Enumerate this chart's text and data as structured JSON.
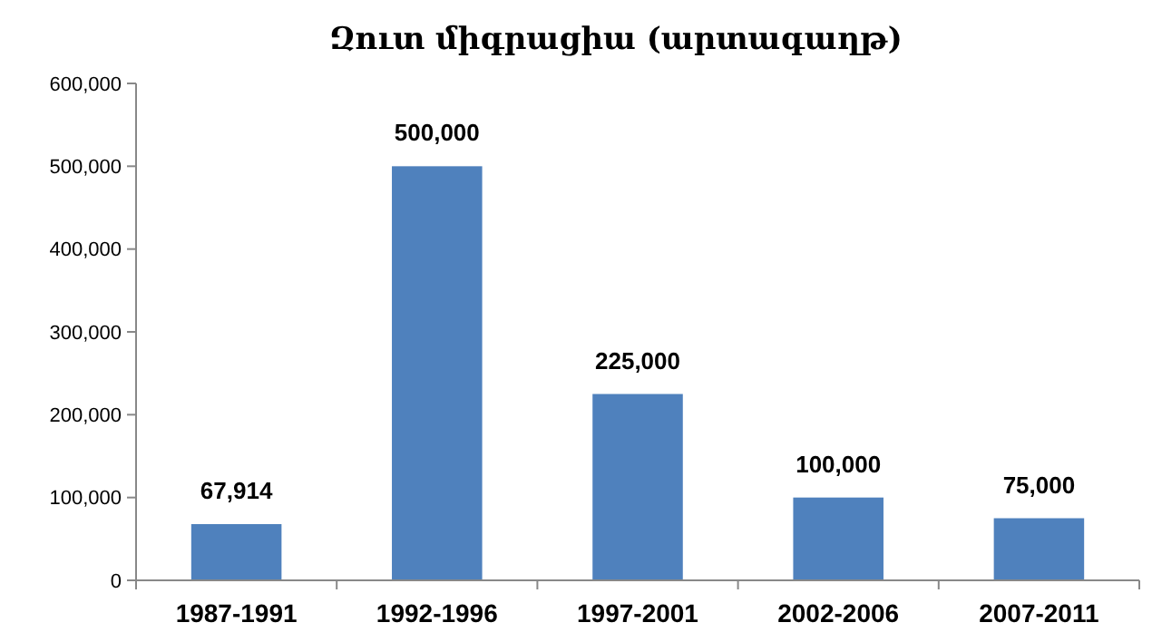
{
  "chart_data": {
    "type": "bar",
    "title": "Զուտ միգրացիա (արտագաղթ)",
    "categories": [
      "1987-1991",
      "1992-1996",
      "1997-2001",
      "2002-2006",
      "2007-2011"
    ],
    "values": [
      67914,
      500000,
      225000,
      100000,
      75000
    ],
    "value_labels": [
      "67,914",
      "500,000",
      "225,000",
      "100,000",
      "75,000"
    ],
    "color": "#4f81bd",
    "ylim": [
      0,
      600000
    ],
    "yticks": [
      {
        "value": 0,
        "label": "0"
      },
      {
        "value": 100000,
        "label": "100,000"
      },
      {
        "value": 200000,
        "label": "200,000"
      },
      {
        "value": 300000,
        "label": "300,000"
      },
      {
        "value": 400000,
        "label": "400,000"
      },
      {
        "value": 500000,
        "label": "500,000"
      },
      {
        "value": 600000,
        "label": "600,000"
      }
    ],
    "grid": false
  }
}
